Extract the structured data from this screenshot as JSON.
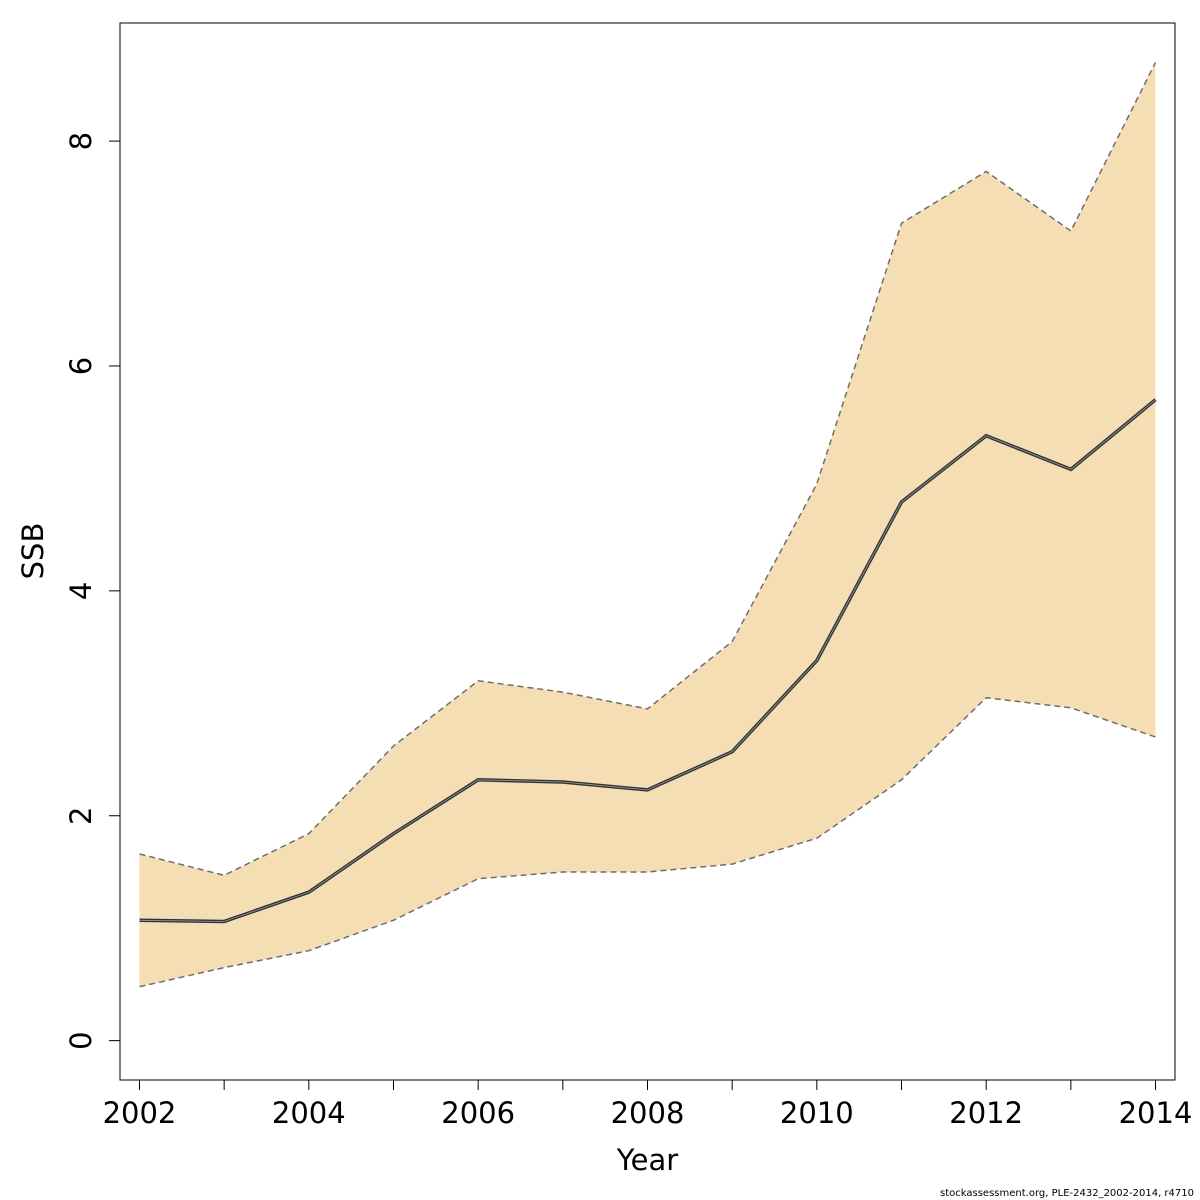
{
  "chart_data": {
    "type": "area",
    "title": "",
    "xlabel": "Year",
    "ylabel": "SSB",
    "x": [
      2002,
      2003,
      2004,
      2005,
      2006,
      2007,
      2008,
      2009,
      2010,
      2011,
      2012,
      2013,
      2014
    ],
    "series": [
      {
        "role": "upper",
        "values": [
          1.66,
          1.47,
          1.84,
          2.62,
          3.2,
          3.1,
          2.95,
          3.55,
          4.95,
          7.27,
          7.73,
          7.2,
          8.7
        ]
      },
      {
        "role": "estimate",
        "values": [
          1.07,
          1.06,
          1.32,
          1.84,
          2.32,
          2.3,
          2.23,
          2.57,
          3.38,
          4.79,
          5.38,
          5.08,
          5.7
        ]
      },
      {
        "role": "lower",
        "values": [
          0.48,
          0.65,
          0.8,
          1.07,
          1.44,
          1.5,
          1.5,
          1.57,
          1.8,
          2.32,
          3.05,
          2.96,
          2.7
        ]
      }
    ],
    "xticks": [
      2002,
      2004,
      2006,
      2008,
      2010,
      2012,
      2014
    ],
    "yticks": [
      0,
      2,
      4,
      6,
      8
    ],
    "xlim": [
      2001.77,
      2014.23
    ],
    "ylim": [
      -0.35,
      9.05
    ],
    "grid": false,
    "colors": {
      "band": "#f5deb3",
      "line": "#333333",
      "bound": "#6e6e6e"
    }
  },
  "footer": {
    "credit": "stockassessment.org, PLE-2432_2002-2014, r4710"
  }
}
